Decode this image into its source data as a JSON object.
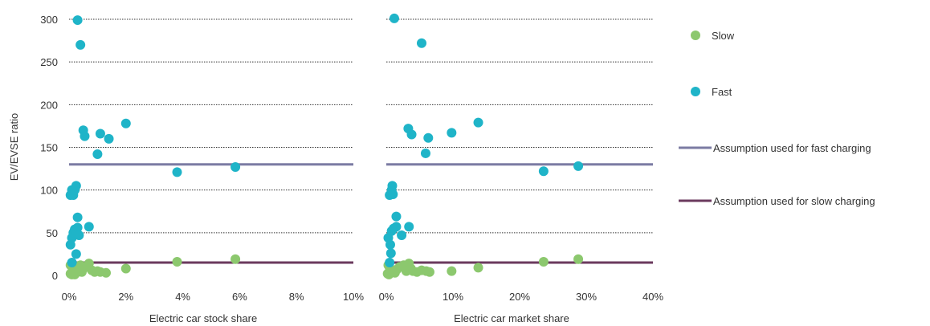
{
  "chart_data": {
    "type": "scatter",
    "ylabel": "EV/EVSE ratio",
    "ylim": [
      0,
      300
    ],
    "yticks": [
      0,
      50,
      100,
      150,
      200,
      250,
      300
    ],
    "grid": "horizontal-dotted",
    "legend_position": "right",
    "colors": {
      "slow": "#8cc86e",
      "fast": "#1fb4c8",
      "fast_line": "#7b7ba3",
      "slow_line": "#6b3a5e"
    },
    "legend": [
      {
        "key": "slow",
        "label": "Slow",
        "kind": "marker"
      },
      {
        "key": "fast",
        "label": "Fast",
        "kind": "marker"
      },
      {
        "key": "fast_line",
        "label": "Assumption used for fast charging",
        "kind": "line"
      },
      {
        "key": "slow_line",
        "label": "Assumption used for slow charging",
        "kind": "line"
      }
    ],
    "panels": [
      {
        "xlabel": "Electric car stock share",
        "xlim": [
          0,
          10
        ],
        "xticks": [
          0,
          2,
          4,
          6,
          8,
          10
        ],
        "xticklabels": [
          "0%",
          "2%",
          "4%",
          "6%",
          "8%",
          "10%"
        ],
        "fast_assumption": 130,
        "slow_assumption": 15,
        "series": {
          "fast": [
            [
              0.3,
              299
            ],
            [
              0.4,
              270
            ],
            [
              0.5,
              170
            ],
            [
              0.55,
              163
            ],
            [
              1.0,
              142
            ],
            [
              1.1,
              166
            ],
            [
              1.4,
              160
            ],
            [
              2.0,
              178
            ],
            [
              3.8,
              121
            ],
            [
              5.85,
              127
            ],
            [
              0.05,
              94
            ],
            [
              0.1,
              100
            ],
            [
              0.15,
              94
            ],
            [
              0.2,
              100
            ],
            [
              0.25,
              105
            ],
            [
              0.05,
              36
            ],
            [
              0.1,
              44
            ],
            [
              0.15,
              50
            ],
            [
              0.2,
              54
            ],
            [
              0.3,
              56
            ],
            [
              0.3,
              68
            ],
            [
              0.35,
              47
            ],
            [
              0.7,
              57
            ],
            [
              0.25,
              25
            ],
            [
              0.1,
              15
            ]
          ],
          "slow": [
            [
              0.05,
              12
            ],
            [
              0.1,
              10
            ],
            [
              0.15,
              7
            ],
            [
              0.2,
              5
            ],
            [
              0.25,
              3
            ],
            [
              0.3,
              6
            ],
            [
              0.35,
              9
            ],
            [
              0.4,
              12
            ],
            [
              0.45,
              4
            ],
            [
              0.5,
              8
            ],
            [
              0.6,
              10
            ],
            [
              0.7,
              14
            ],
            [
              0.8,
              6
            ],
            [
              0.9,
              4
            ],
            [
              1.0,
              5
            ],
            [
              1.1,
              4
            ],
            [
              1.3,
              3
            ],
            [
              2.0,
              8
            ],
            [
              3.8,
              16
            ],
            [
              5.85,
              19
            ],
            [
              0.05,
              2
            ],
            [
              0.1,
              1
            ],
            [
              0.2,
              1
            ]
          ]
        }
      },
      {
        "xlabel": "Electric car market share",
        "xlim": [
          0,
          40
        ],
        "xticks": [
          0,
          10,
          20,
          30,
          40
        ],
        "xticklabels": [
          "0%",
          "10%",
          "20%",
          "30%",
          "40%"
        ],
        "fast_assumption": 130,
        "slow_assumption": 15,
        "series": {
          "fast": [
            [
              1.2,
              301
            ],
            [
              5.3,
              272
            ],
            [
              3.3,
              172
            ],
            [
              3.8,
              165
            ],
            [
              5.9,
              143
            ],
            [
              6.3,
              161
            ],
            [
              9.8,
              167
            ],
            [
              13.8,
              179
            ],
            [
              23.6,
              122
            ],
            [
              28.8,
              128
            ],
            [
              0.5,
              94
            ],
            [
              0.8,
              100
            ],
            [
              1.0,
              95
            ],
            [
              0.9,
              105
            ],
            [
              0.3,
              44
            ],
            [
              0.6,
              36
            ],
            [
              0.8,
              52
            ],
            [
              1.1,
              55
            ],
            [
              1.5,
              57
            ],
            [
              1.5,
              69
            ],
            [
              2.3,
              47
            ],
            [
              3.4,
              57
            ],
            [
              0.7,
              26
            ],
            [
              0.5,
              15
            ]
          ],
          "slow": [
            [
              0.3,
              12
            ],
            [
              0.5,
              9
            ],
            [
              0.8,
              6
            ],
            [
              1.0,
              4
            ],
            [
              1.3,
              3
            ],
            [
              1.6,
              7
            ],
            [
              2.0,
              10
            ],
            [
              2.6,
              12
            ],
            [
              3.0,
              5
            ],
            [
              3.4,
              14
            ],
            [
              3.7,
              8
            ],
            [
              4.0,
              5
            ],
            [
              4.6,
              4
            ],
            [
              5.3,
              6
            ],
            [
              6.0,
              5
            ],
            [
              6.5,
              4
            ],
            [
              9.8,
              5
            ],
            [
              13.8,
              9
            ],
            [
              23.6,
              16
            ],
            [
              28.8,
              19
            ],
            [
              0.2,
              2
            ],
            [
              0.4,
              1
            ]
          ]
        }
      }
    ]
  }
}
